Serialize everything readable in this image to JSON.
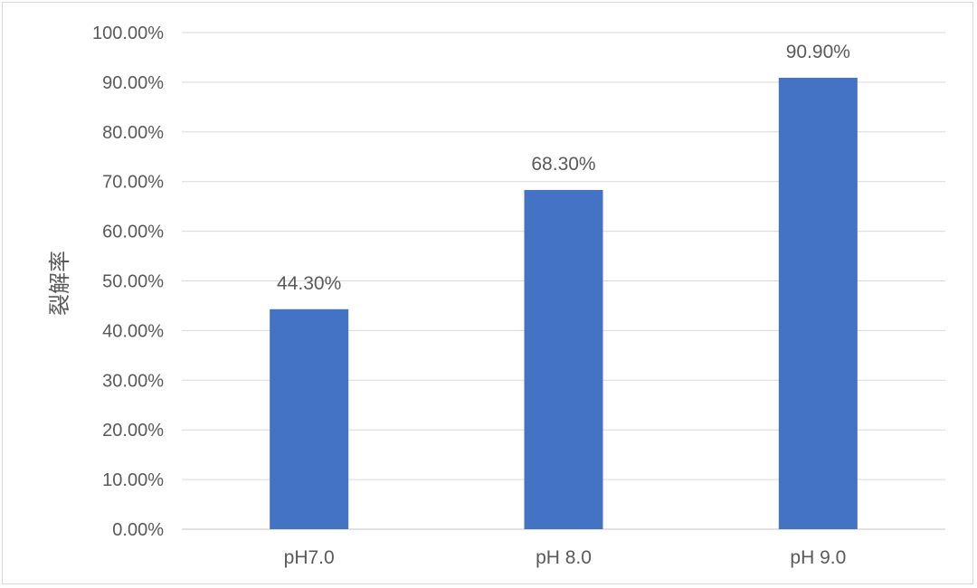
{
  "chart_data": {
    "type": "bar",
    "title": "",
    "xlabel": "",
    "ylabel": "裂解率",
    "categories": [
      "pH7.0",
      "pH 8.0",
      "pH 9.0"
    ],
    "values": [
      0.443,
      0.683,
      0.909
    ],
    "data_labels": [
      "44.30%",
      "68.30%",
      "90.90%"
    ],
    "ylim": [
      0,
      1
    ],
    "yticks": [
      0,
      0.1,
      0.2,
      0.3,
      0.4,
      0.5,
      0.6,
      0.7,
      0.8,
      0.9,
      1.0
    ],
    "ytick_labels": [
      "0.00%",
      "10.00%",
      "20.00%",
      "30.00%",
      "40.00%",
      "50.00%",
      "60.00%",
      "70.00%",
      "80.00%",
      "90.00%",
      "100.00%"
    ],
    "grid": true,
    "legend": "none",
    "colors": {
      "bar": "#4472c4",
      "grid": "#d9d9d9",
      "text": "#595959"
    }
  }
}
